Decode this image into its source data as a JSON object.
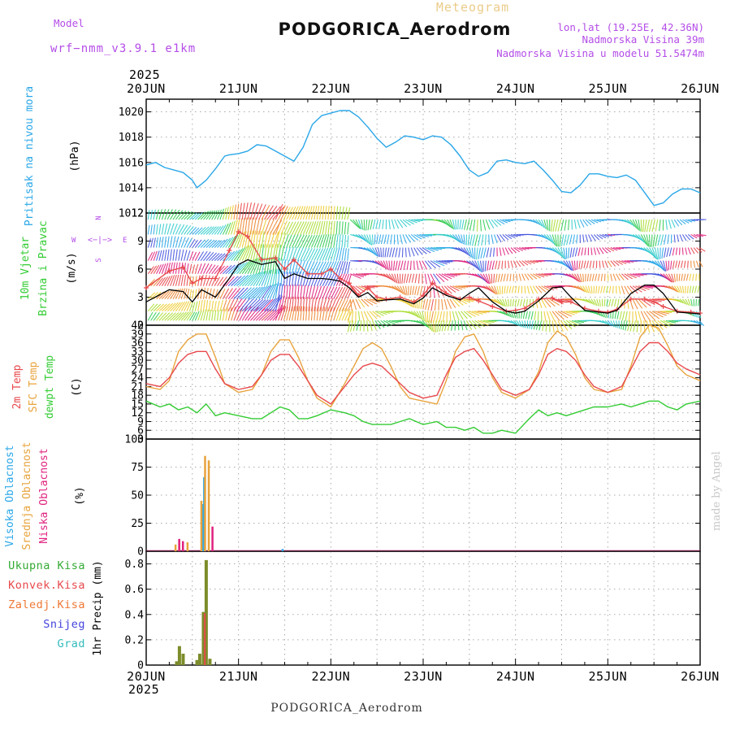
{
  "header": {
    "title": "PODGORICA_Aerodrom",
    "subtitle": "Meteogram",
    "model_label": "Model",
    "model_name": "wrf−nmm_v3.9.1 e1km",
    "coords": "lon,lat (19.25E, 42.36N)",
    "elevation": "Nadmorska Visina 39m",
    "model_elevation": "Nadmorska Visina u modelu 51.5474m",
    "year": "2025"
  },
  "footer": {
    "station": "PODGORICA_Aerodrom",
    "year": "2025",
    "credit": "made by Angel"
  },
  "x_axis": {
    "labels": [
      "20JUN",
      "21JUN",
      "22JUN",
      "23JUN",
      "24JUN",
      "25JUN",
      "26JUN"
    ],
    "range_days": [
      0,
      6
    ]
  },
  "colors": {
    "pressure": "#2aa7e8",
    "t2m": "#e8484c",
    "tsfc": "#e8a33c",
    "dewpt": "#33cc33",
    "wind_speed": "#000000",
    "gust": "#e8484c",
    "high_cloud": "#2aa7e8",
    "mid_cloud": "#e8a33c",
    "low_cloud": "#e0227e",
    "total_precip": "#33aa33",
    "conv_precip": "#e8484c",
    "frz_precip": "#ee7733",
    "snow": "#4444dd",
    "graupel": "#33bbbb",
    "grid": "#aaaaaa"
  },
  "panels": {
    "pressure": {
      "lines": [
        {
          "text": "Pritisak na nivou mora",
          "color": "#2aa7e8"
        }
      ],
      "unit": "(hPa)"
    },
    "wind": {
      "lines": [
        {
          "text": "10m Vjetar",
          "color": "#33cc33"
        },
        {
          "text": "Brzina i Pravac",
          "color": "#33cc33"
        }
      ],
      "unit": "(m/s)",
      "compass": {
        "n": "N",
        "s": "S",
        "w": "W",
        "e": "E",
        "glyph": "<−|−>",
        "color": "#b44de8"
      }
    },
    "temp": {
      "lines": [
        {
          "text": "2m Temp",
          "color": "#e8484c"
        },
        {
          "text": "SFC Temp",
          "color": "#e8a33c"
        },
        {
          "text": "dewpt Temp",
          "color": "#33cc33"
        }
      ],
      "unit": "(C)"
    },
    "cloud": {
      "lines": [
        {
          "text": "Visoka Oblacnost",
          "color": "#2aa7e8"
        },
        {
          "text": "Srednja Oblacnost",
          "color": "#e8a33c"
        },
        {
          "text": "Niska Oblacnost",
          "color": "#e0227e"
        }
      ],
      "unit": "(%)"
    },
    "precip": {
      "legend": [
        {
          "text": "Ukupna Kisa",
          "color": "#33aa33"
        },
        {
          "text": "Konvek.Kisa",
          "color": "#e8484c"
        },
        {
          "text": "Zaledj.Kisa",
          "color": "#ee7733"
        },
        {
          "text": "Snijeg",
          "color": "#4444dd"
        },
        {
          "text": "Grad",
          "color": "#33bbbb"
        }
      ],
      "unit": "1hr Precip (mm)"
    }
  },
  "chart_data": [
    {
      "type": "line",
      "name": "pressure",
      "x": [
        0,
        0.1,
        0.2,
        0.3,
        0.4,
        0.5,
        0.55,
        0.65,
        0.75,
        0.85,
        0.9,
        1.0,
        1.1,
        1.2,
        1.3,
        1.4,
        1.5,
        1.6,
        1.7,
        1.8,
        1.9,
        2.0,
        2.1,
        2.2,
        2.3,
        2.4,
        2.5,
        2.6,
        2.7,
        2.8,
        2.9,
        3.0,
        3.1,
        3.2,
        3.3,
        3.4,
        3.5,
        3.6,
        3.7,
        3.8,
        3.9,
        4.0,
        4.1,
        4.2,
        4.3,
        4.4,
        4.5,
        4.6,
        4.7,
        4.8,
        4.9,
        5.0,
        5.1,
        5.2,
        5.3,
        5.4,
        5.5,
        5.6,
        5.7,
        5.8,
        5.9,
        6.0
      ],
      "values": [
        1015.8,
        1016.0,
        1015.6,
        1015.4,
        1015.2,
        1014.6,
        1014.0,
        1014.6,
        1015.5,
        1016.5,
        1016.6,
        1016.7,
        1016.9,
        1017.4,
        1017.3,
        1016.9,
        1016.5,
        1016.1,
        1017.2,
        1019.0,
        1019.7,
        1019.9,
        1020.1,
        1020.1,
        1019.6,
        1018.8,
        1017.9,
        1017.2,
        1017.6,
        1018.1,
        1018.0,
        1017.8,
        1018.1,
        1018.0,
        1017.4,
        1016.5,
        1015.4,
        1014.9,
        1015.2,
        1016.1,
        1016.2,
        1016.0,
        1015.9,
        1016.1,
        1015.4,
        1014.6,
        1013.7,
        1013.6,
        1014.2,
        1015.1,
        1015.1,
        1014.9,
        1014.8,
        1015.0,
        1014.6,
        1013.6,
        1012.6,
        1012.8,
        1013.5,
        1013.9,
        1013.9,
        1013.6
      ],
      "ylim": [
        1012,
        1021
      ],
      "yticks": [
        1012,
        1014,
        1016,
        1018,
        1020
      ]
    },
    {
      "type": "line",
      "name": "wind",
      "x": [
        0,
        0.25,
        0.4,
        0.5,
        0.6,
        0.75,
        0.9,
        1.0,
        1.1,
        1.25,
        1.4,
        1.5,
        1.6,
        1.75,
        1.9,
        2.0,
        2.1,
        2.2,
        2.3,
        2.4,
        2.5,
        2.6,
        2.75,
        2.9,
        3.0,
        3.1,
        3.25,
        3.4,
        3.5,
        3.6,
        3.75,
        3.9,
        4.0,
        4.1,
        4.25,
        4.4,
        4.5,
        4.6,
        4.75,
        4.9,
        5.0,
        5.1,
        5.25,
        5.4,
        5.5,
        5.6,
        5.75,
        5.9,
        6.0
      ],
      "series": [
        {
          "name": "speed",
          "values": [
            2.5,
            3.8,
            3.6,
            2.5,
            3.8,
            3.0,
            5.0,
            6.5,
            7.0,
            6.5,
            6.8,
            5.0,
            5.5,
            5.0,
            5.0,
            4.9,
            4.7,
            4.0,
            3.0,
            3.5,
            2.6,
            2.7,
            2.8,
            2.3,
            2.9,
            4.0,
            3.2,
            2.7,
            3.4,
            4.0,
            2.5,
            1.5,
            1.3,
            1.5,
            2.6,
            4.0,
            4.1,
            3.0,
            1.6,
            1.4,
            1.3,
            1.6,
            3.4,
            4.3,
            4.3,
            3.4,
            1.4,
            1.3,
            1.2
          ]
        },
        {
          "name": "gust",
          "values": [
            4.0,
            5.8,
            6.2,
            4.5,
            5.0,
            5.0,
            8.0,
            10.0,
            9.5,
            7.0,
            7.2,
            6.0,
            7.0,
            5.5,
            5.5,
            6.0,
            5.0,
            4.5,
            3.2,
            4.0,
            3.0,
            2.8,
            3.0,
            2.5,
            3.2,
            4.5,
            3.4,
            2.8,
            3.0,
            2.6,
            2.0,
            1.5,
            1.6,
            1.8,
            2.8,
            2.9,
            2.5,
            2.5,
            1.8,
            1.5,
            1.4,
            1.7,
            2.8,
            2.8,
            2.5,
            2.0,
            1.5,
            1.4,
            1.3
          ]
        }
      ],
      "ylim": [
        0,
        12
      ],
      "yticks": [
        0,
        3,
        6,
        9,
        12
      ]
    },
    {
      "type": "line",
      "name": "temperature",
      "x": [
        0,
        0.15,
        0.25,
        0.35,
        0.45,
        0.55,
        0.65,
        0.75,
        0.85,
        1.0,
        1.15,
        1.25,
        1.35,
        1.45,
        1.55,
        1.65,
        1.75,
        1.85,
        2.0,
        2.15,
        2.25,
        2.35,
        2.45,
        2.55,
        2.65,
        2.75,
        2.85,
        3.0,
        3.15,
        3.25,
        3.35,
        3.45,
        3.55,
        3.65,
        3.75,
        3.85,
        4.0,
        4.15,
        4.25,
        4.35,
        4.45,
        4.55,
        4.65,
        4.75,
        4.85,
        5.0,
        5.15,
        5.25,
        5.35,
        5.45,
        5.55,
        5.65,
        5.75,
        5.85,
        6.0
      ],
      "series": [
        {
          "name": "t2m",
          "values": [
            22,
            21,
            24,
            29,
            32,
            33,
            33,
            27,
            22,
            20,
            21,
            25,
            30,
            32,
            32,
            28,
            23,
            18,
            15,
            21,
            25,
            28,
            29,
            28,
            25,
            22,
            19,
            17,
            18,
            25,
            31,
            33,
            34,
            30,
            25,
            20,
            18,
            20,
            25,
            32,
            34,
            33,
            30,
            25,
            21,
            19,
            21,
            27,
            33,
            36,
            36,
            33,
            29,
            27,
            25
          ]
        },
        {
          "name": "tsfc",
          "values": [
            21,
            20,
            23,
            33,
            37,
            39,
            39,
            31,
            22,
            19,
            20,
            25,
            33,
            37,
            37,
            31,
            23,
            17,
            14,
            22,
            28,
            34,
            36,
            34,
            28,
            21,
            17,
            16,
            15,
            23,
            33,
            38,
            39,
            33,
            24,
            19,
            17,
            20,
            26,
            36,
            40,
            38,
            32,
            24,
            20,
            19,
            20,
            28,
            38,
            42,
            41,
            35,
            28,
            25,
            23
          ]
        },
        {
          "name": "dewpt",
          "values": [
            16,
            14,
            15,
            13,
            14,
            12,
            15,
            11,
            12,
            11,
            10,
            10,
            12,
            14,
            13,
            10,
            10,
            11,
            13,
            12,
            11,
            9,
            8,
            8,
            8,
            9,
            10,
            8,
            9,
            7,
            7,
            6,
            7,
            5,
            5,
            6,
            5,
            10,
            13,
            11,
            12,
            11,
            12,
            13,
            14,
            14,
            15,
            14,
            15,
            16,
            16,
            14,
            13,
            15,
            16
          ]
        }
      ],
      "ylim": [
        3,
        42
      ],
      "yticks": [
        3,
        6,
        9,
        12,
        15,
        18,
        21,
        24,
        27,
        30,
        33,
        36,
        39,
        42
      ]
    },
    {
      "type": "bar",
      "name": "cloud",
      "series": [
        {
          "name": "high",
          "bars": [
            {
              "x": 0.61,
              "v": 42
            },
            {
              "x": 0.63,
              "v": 66
            },
            {
              "x": 1.48,
              "v": 2
            }
          ]
        },
        {
          "name": "mid",
          "bars": [
            {
              "x": 0.32,
              "v": 6
            },
            {
              "x": 0.36,
              "v": 10
            },
            {
              "x": 0.45,
              "v": 8
            },
            {
              "x": 0.6,
              "v": 45
            },
            {
              "x": 0.64,
              "v": 85
            },
            {
              "x": 0.68,
              "v": 81
            }
          ]
        },
        {
          "name": "low",
          "bars": [
            {
              "x": 0.36,
              "v": 11
            },
            {
              "x": 0.4,
              "v": 9
            },
            {
              "x": 0.72,
              "v": 22
            }
          ]
        }
      ],
      "ylim": [
        0,
        100
      ],
      "yticks": [
        0,
        25,
        50,
        75,
        100
      ]
    },
    {
      "type": "bar",
      "name": "precip",
      "series": [
        {
          "name": "total",
          "bars": [
            {
              "x": 0.33,
              "v": 0.03
            },
            {
              "x": 0.36,
              "v": 0.15
            },
            {
              "x": 0.4,
              "v": 0.09
            },
            {
              "x": 0.55,
              "v": 0.04
            },
            {
              "x": 0.58,
              "v": 0.09
            },
            {
              "x": 0.62,
              "v": 0.42
            },
            {
              "x": 0.65,
              "v": 0.83
            },
            {
              "x": 0.69,
              "v": 0.05
            }
          ]
        },
        {
          "name": "convective",
          "bars": [
            {
              "x": 0.635,
              "v": 0.41
            }
          ]
        }
      ],
      "ylim": [
        0,
        0.9
      ],
      "yticks": [
        0,
        0.2,
        0.4,
        0.6,
        0.8
      ]
    }
  ]
}
